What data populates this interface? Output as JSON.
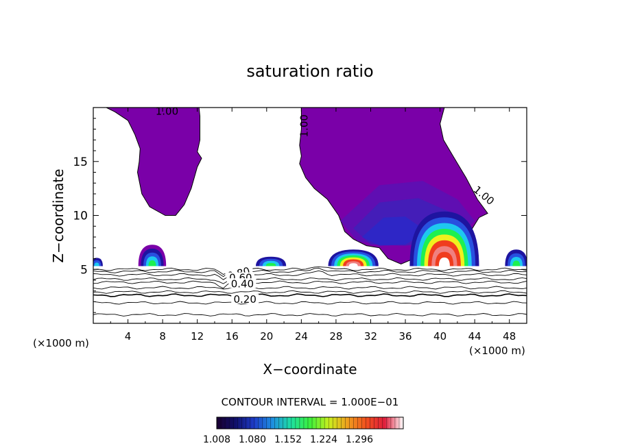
{
  "chart_data": {
    "type": "contour",
    "title": "saturation ratio",
    "xlabel": "X−coordinate",
    "ylabel": "Z−coordinate",
    "x_unit_left": "(×1000 m)",
    "x_unit_right": "(×1000 m)",
    "xlim": [
      0,
      50
    ],
    "ylim": [
      0,
      20
    ],
    "x_ticks": [
      4,
      8,
      12,
      16,
      20,
      24,
      28,
      32,
      36,
      40,
      44,
      48
    ],
    "x_tick_labels": [
      "4",
      "8",
      "12",
      "16",
      "20",
      "24",
      "28",
      "32",
      "36",
      "40",
      "44",
      "48"
    ],
    "y_ticks": [
      5,
      10,
      15
    ],
    "y_tick_labels": [
      "5",
      "10",
      "15"
    ],
    "contour_interval_text": "CONTOUR INTERVAL = 1.000E−01",
    "line_labels": [
      "1.00",
      "1.00",
      "1.00",
      "0.80",
      "0.60",
      "0.40",
      "0.20"
    ],
    "colorbar": {
      "labels": [
        "1.008",
        "1.080",
        "1.152",
        "1.224",
        "1.296"
      ],
      "colors": [
        "#1a0030",
        "#10106a",
        "#1e3cc8",
        "#1e90e0",
        "#1ee0a0",
        "#3cf03c",
        "#c8f01e",
        "#f0a01e",
        "#f0501e",
        "#e01e3c",
        "#ffffff"
      ]
    },
    "colors": {
      "purple_fill": "#7a00a8",
      "deep_blue": "#1e14a0",
      "blue": "#2850e0",
      "cyan": "#1ec8f0",
      "green": "#1ef050",
      "yellow": "#f0f01e",
      "red": "#f03c1e",
      "white_core": "#ffffff"
    }
  }
}
